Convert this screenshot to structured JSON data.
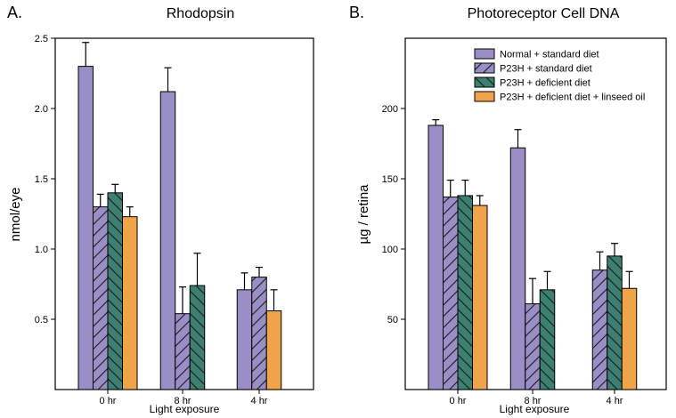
{
  "colors": {
    "normal": "#9a8ec6",
    "p23h_standard": "#9a8ec6",
    "p23h_deficient": "#3d8071",
    "p23h_linseed": "#f0a44a",
    "frame": "#000000"
  },
  "legend": [
    {
      "label": "Normal + standard diet",
      "color": "#9a8ec6",
      "pattern": "none"
    },
    {
      "label": "P23H + standard diet",
      "color": "#9a8ec6",
      "pattern": "hatch"
    },
    {
      "label": "P23H + deficient diet",
      "color": "#3d8071",
      "pattern": "hatch"
    },
    {
      "label": "P23H + deficient diet + linseed oil",
      "color": "#f0a44a",
      "pattern": "none"
    }
  ],
  "chart_data": [
    {
      "panel_label": "A.",
      "type": "bar",
      "title": "Rhodopsin",
      "xlabel": "Light exposure",
      "ylabel": "nmol/eye",
      "categories": [
        "0 hr",
        "8 hr",
        "4 hr"
      ],
      "ylim": [
        0,
        2.5
      ],
      "yticks": [
        0.5,
        1.0,
        1.5,
        2.0,
        2.5
      ],
      "ytick_labels": [
        "0.5",
        "1.0",
        "1.5",
        "2.0",
        "2.5"
      ],
      "series": [
        {
          "name": "Normal + standard diet",
          "values": [
            2.3,
            2.12,
            0.71
          ],
          "errors": [
            0.17,
            0.17,
            0.12
          ]
        },
        {
          "name": "P23H + standard diet",
          "values": [
            1.3,
            0.54,
            0.8
          ],
          "errors": [
            0.09,
            0.19,
            0.07
          ]
        },
        {
          "name": "P23H + deficient diet",
          "values": [
            1.4,
            0.74,
            null
          ],
          "errors": [
            0.06,
            0.23,
            null
          ]
        },
        {
          "name": "P23H + deficient diet + linseed oil",
          "values": [
            1.23,
            null,
            0.56
          ],
          "errors": [
            0.07,
            null,
            0.15
          ]
        }
      ]
    },
    {
      "panel_label": "B.",
      "type": "bar",
      "title": "Photoreceptor Cell DNA",
      "xlabel": "Light exposure",
      "ylabel": "µg / retina",
      "categories": [
        "0 hr",
        "8 hr",
        "4 hr"
      ],
      "ylim": [
        0,
        250
      ],
      "yticks": [
        50,
        100,
        150,
        200
      ],
      "ytick_labels": [
        "50",
        "100",
        "150",
        "200"
      ],
      "series": [
        {
          "name": "Normal + standard diet",
          "values": [
            188,
            172,
            null
          ],
          "errors": [
            4,
            13,
            null
          ]
        },
        {
          "name": "P23H + standard diet",
          "values": [
            137,
            61,
            85
          ],
          "errors": [
            12,
            18,
            13
          ]
        },
        {
          "name": "P23H + deficient diet",
          "values": [
            138,
            71,
            95
          ],
          "errors": [
            11,
            13,
            9
          ]
        },
        {
          "name": "P23H + deficient diet + linseed oil",
          "values": [
            131,
            null,
            72
          ],
          "errors": [
            7,
            null,
            12
          ]
        }
      ]
    }
  ]
}
